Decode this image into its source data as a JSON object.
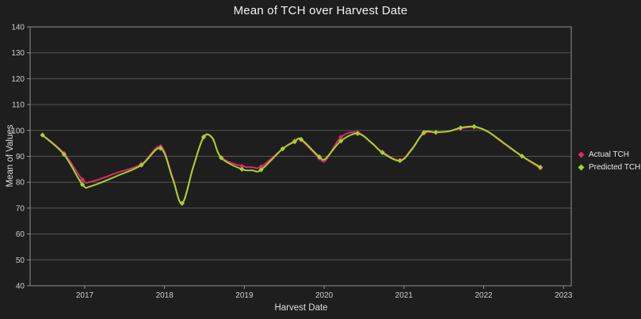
{
  "title": "Mean of TCH over Harvest Date",
  "colors": {
    "background": "#1e1e1e",
    "plot_border": "#8f8f8f",
    "gridline": "#545454",
    "tick_text": "#cdcdcd",
    "title_text": "#f2f2f2",
    "axis_label_text": "#dcdcdc",
    "actual": "#e0286a",
    "predicted": "#a2d42c"
  },
  "chart_data": {
    "type": "line",
    "title": "Mean of TCH over Harvest Date",
    "xlabel": "Harvest Date",
    "ylabel": "Mean of Values",
    "ylim": [
      40,
      140
    ],
    "xlim": [
      2016.31,
      2023.1
    ],
    "y_ticks": [
      40,
      50,
      60,
      70,
      80,
      90,
      100,
      110,
      120,
      130,
      140
    ],
    "x_ticks": [
      2017,
      2018,
      2019,
      2020,
      2021,
      2022,
      2023
    ],
    "grid": "horizontal",
    "legend_position": "right-middle",
    "x": [
      2016.47,
      2016.74,
      2016.97,
      2017.08,
      2017.41,
      2017.71,
      2017.95,
      2018.1,
      2018.22,
      2018.36,
      2018.49,
      2018.6,
      2018.71,
      2018.97,
      2019.1,
      2019.21,
      2019.48,
      2019.63,
      2019.71,
      2019.94,
      2020.02,
      2020.21,
      2020.42,
      2020.6,
      2020.73,
      2020.95,
      2021.1,
      2021.25,
      2021.4,
      2021.56,
      2021.71,
      2021.88,
      2022.05,
      2022.25,
      2022.48,
      2022.71
    ],
    "markers": [
      true,
      true,
      true,
      false,
      false,
      true,
      true,
      false,
      true,
      false,
      true,
      false,
      true,
      true,
      false,
      true,
      true,
      true,
      true,
      true,
      false,
      true,
      true,
      false,
      true,
      true,
      false,
      true,
      true,
      false,
      true,
      true,
      false,
      false,
      true,
      true
    ],
    "series": [
      {
        "name": "Actual TCH",
        "color": "#e0286a",
        "values": [
          98.3,
          91.2,
          81.0,
          80.2,
          83.7,
          87.0,
          93.8,
          82.0,
          71.9,
          86.0,
          97.3,
          96.9,
          89.6,
          86.2,
          85.8,
          86.0,
          92.9,
          96.0,
          96.3,
          89.3,
          88.5,
          97.4,
          99.2,
          95.0,
          91.7,
          88.5,
          93.0,
          98.9,
          99.2,
          99.6,
          100.8,
          101.3,
          99.5,
          95.0,
          90.0,
          85.4
        ]
      },
      {
        "name": "Predicted TCH",
        "color": "#a2d42c",
        "values": [
          98.2,
          90.7,
          79.1,
          78.5,
          82.5,
          86.6,
          93.1,
          81.5,
          71.8,
          86.0,
          97.5,
          97.1,
          89.4,
          85.0,
          84.6,
          84.8,
          92.9,
          95.6,
          96.6,
          89.8,
          89.2,
          95.9,
          98.8,
          95.1,
          91.4,
          88.3,
          92.7,
          99.2,
          99.3,
          99.7,
          101.0,
          101.5,
          99.6,
          95.2,
          90.1,
          85.8
        ]
      }
    ]
  }
}
